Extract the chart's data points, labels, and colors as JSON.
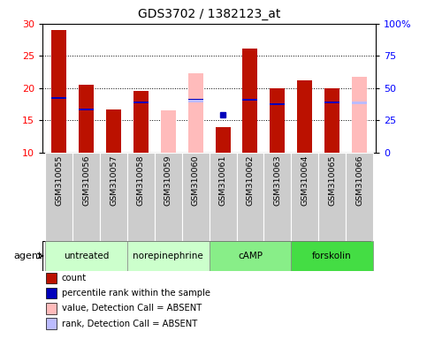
{
  "title": "GDS3702 / 1382123_at",
  "samples": [
    "GSM310055",
    "GSM310056",
    "GSM310057",
    "GSM310058",
    "GSM310059",
    "GSM310060",
    "GSM310061",
    "GSM310062",
    "GSM310063",
    "GSM310064",
    "GSM310065",
    "GSM310066"
  ],
  "count_values": [
    29.0,
    20.5,
    16.7,
    19.5,
    null,
    null,
    14.0,
    26.2,
    20.0,
    21.2,
    20.0,
    null
  ],
  "rank_values": [
    18.5,
    16.7,
    null,
    17.8,
    null,
    18.2,
    null,
    18.2,
    17.5,
    null,
    17.8,
    17.7
  ],
  "absent_value_values": [
    null,
    null,
    null,
    null,
    16.5,
    22.3,
    null,
    null,
    null,
    null,
    null,
    21.8
  ],
  "absent_rank_values": [
    null,
    null,
    null,
    null,
    null,
    18.0,
    null,
    null,
    null,
    null,
    null,
    17.7
  ],
  "percentile_rank": [
    null,
    null,
    null,
    null,
    null,
    null,
    15.9,
    null,
    null,
    null,
    null,
    null
  ],
  "agent_groups": [
    {
      "label": "untreated",
      "start": 0,
      "end": 3,
      "color": "#ccffcc"
    },
    {
      "label": "norepinephrine",
      "start": 3,
      "end": 6,
      "color": "#ccffcc"
    },
    {
      "label": "cAMP",
      "start": 6,
      "end": 9,
      "color": "#77ee77"
    },
    {
      "label": "forskolin",
      "start": 9,
      "end": 12,
      "color": "#44dd44"
    }
  ],
  "ylim": [
    10,
    30
  ],
  "yticks": [
    10,
    15,
    20,
    25,
    30
  ],
  "y2ticks": [
    0,
    25,
    50,
    75,
    100
  ],
  "bar_width": 0.55,
  "count_color": "#bb1100",
  "rank_color": "#0000bb",
  "absent_value_color": "#ffbbbb",
  "absent_rank_color": "#bbbbff",
  "percentile_color": "#0000bb",
  "background_color": "#ffffff"
}
